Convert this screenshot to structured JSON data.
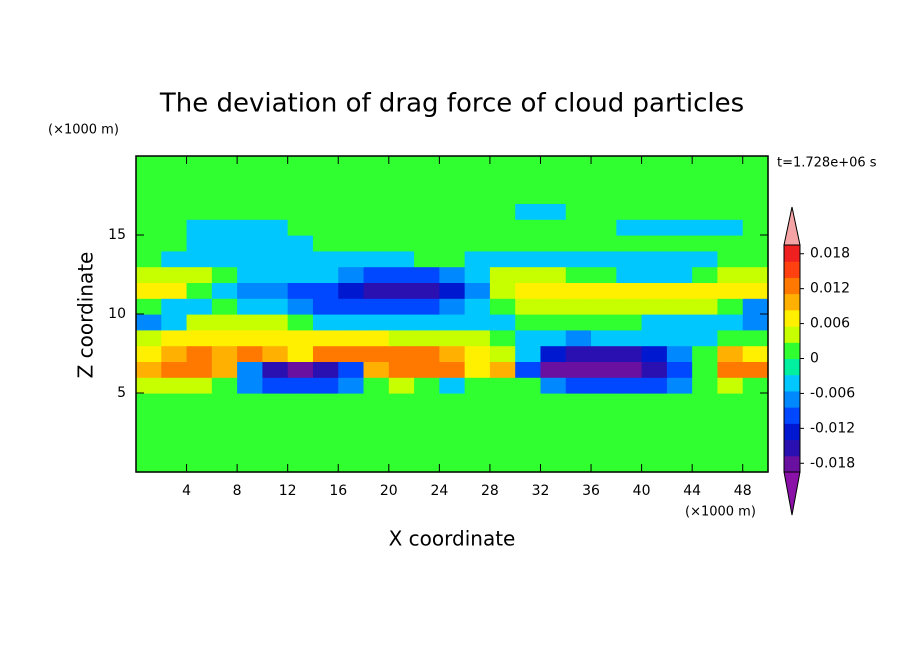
{
  "chart_data": {
    "type": "contour",
    "title": "The deviation of drag force of cloud particles",
    "xlabel": "X coordinate",
    "ylabel": "Z coordinate",
    "xunit": "(×1000 m)",
    "yunit": "(×1000 m)",
    "time_label": "t=1.728e+06 s",
    "xlim": [
      0,
      50
    ],
    "ylim": [
      0,
      20
    ],
    "xticks": [
      4,
      8,
      12,
      16,
      20,
      24,
      28,
      32,
      36,
      40,
      44,
      48
    ],
    "yticks": [
      5,
      10,
      15
    ],
    "x": [
      1,
      3,
      5,
      7,
      9,
      11,
      13,
      15,
      17,
      19,
      21,
      23,
      25,
      27,
      29,
      31,
      33,
      35,
      37,
      39,
      41,
      43,
      45,
      47,
      49
    ],
    "y": [
      0.5,
      1.5,
      2.5,
      3.5,
      4.5,
      5.5,
      6.5,
      7.5,
      8.5,
      9.5,
      10.5,
      11.5,
      12.5,
      13.5,
      14.5,
      15.5,
      16.5,
      17.5,
      18.5,
      19.5
    ],
    "z": [
      [
        0,
        0,
        0,
        0,
        0,
        0,
        0,
        0,
        0,
        0,
        0,
        0,
        0,
        0,
        0,
        0,
        0,
        0,
        0,
        0,
        0,
        0,
        0,
        0,
        0
      ],
      [
        0,
        0,
        0,
        0,
        0,
        0,
        0,
        0,
        0,
        0,
        0,
        0,
        0,
        0,
        0,
        0,
        0,
        0,
        0,
        0,
        0,
        0,
        0,
        0,
        0
      ],
      [
        0,
        0,
        0,
        0,
        0,
        0,
        0,
        0,
        0,
        0,
        0,
        0,
        0,
        0,
        0,
        0,
        0,
        0,
        0,
        0,
        0,
        0,
        0,
        0,
        0
      ],
      [
        0,
        0,
        0,
        0,
        0,
        0,
        0,
        0,
        0,
        0,
        0,
        0,
        0,
        0,
        0,
        0,
        0,
        0,
        0,
        0,
        0,
        0,
        0,
        0,
        0
      ],
      [
        0,
        0,
        0,
        0,
        0,
        0,
        0,
        0,
        0,
        0,
        0,
        0,
        0,
        0,
        0,
        0,
        0,
        0,
        0,
        0,
        0,
        0,
        0,
        0,
        0
      ],
      [
        0.003,
        0.003,
        0.003,
        0,
        -0.006,
        -0.009,
        -0.009,
        -0.009,
        -0.006,
        0,
        0.003,
        0,
        -0.003,
        0,
        0,
        0,
        -0.006,
        -0.009,
        -0.009,
        -0.009,
        -0.009,
        -0.006,
        0,
        0.003,
        0
      ],
      [
        0.009,
        0.012,
        0.012,
        0.009,
        -0.006,
        -0.015,
        -0.018,
        -0.015,
        -0.009,
        0.009,
        0.012,
        0.012,
        0.012,
        0.006,
        0.009,
        -0.009,
        -0.018,
        -0.018,
        -0.018,
        -0.018,
        -0.015,
        -0.009,
        0,
        0.012,
        0.012
      ],
      [
        0.006,
        0.009,
        0.012,
        0.009,
        0.012,
        0.009,
        0.006,
        0.012,
        0.012,
        0.012,
        0.012,
        0.012,
        0.009,
        0.006,
        0.003,
        -0.003,
        -0.012,
        -0.015,
        -0.015,
        -0.015,
        -0.012,
        -0.006,
        0,
        0.009,
        0.006
      ],
      [
        0.003,
        0.006,
        0.006,
        0.006,
        0.006,
        0.006,
        0.006,
        0.006,
        0.006,
        0.006,
        0.003,
        0.003,
        0.003,
        0.003,
        0,
        -0.003,
        -0.003,
        -0.006,
        -0.003,
        -0.003,
        -0.003,
        -0.003,
        -0.003,
        0,
        0
      ],
      [
        -0.006,
        -0.003,
        0.003,
        0.003,
        0.003,
        0.003,
        0,
        -0.003,
        -0.003,
        -0.003,
        -0.003,
        -0.003,
        -0.003,
        -0.003,
        -0.003,
        0,
        0,
        0,
        0,
        0,
        -0.003,
        -0.003,
        -0.003,
        -0.003,
        -0.006
      ],
      [
        0,
        -0.003,
        -0.003,
        0,
        -0.003,
        -0.003,
        -0.006,
        -0.009,
        -0.009,
        -0.009,
        -0.009,
        -0.009,
        -0.006,
        -0.003,
        0,
        0.003,
        0.003,
        0.003,
        0.003,
        0.003,
        0.003,
        0.003,
        0.003,
        0,
        -0.006
      ],
      [
        0.006,
        0.006,
        0,
        -0.003,
        -0.006,
        -0.006,
        -0.009,
        -0.009,
        -0.012,
        -0.015,
        -0.015,
        -0.015,
        -0.012,
        -0.006,
        0.003,
        0.006,
        0.006,
        0.006,
        0.006,
        0.006,
        0.006,
        0.006,
        0.006,
        0.006,
        0.006
      ],
      [
        0.003,
        0.003,
        0.003,
        0,
        -0.003,
        -0.003,
        -0.003,
        -0.003,
        -0.006,
        -0.009,
        -0.009,
        -0.009,
        -0.006,
        -0.003,
        0.003,
        0.003,
        0.003,
        0,
        0,
        -0.003,
        -0.003,
        -0.003,
        0,
        0.003,
        0.003
      ],
      [
        0,
        -0.003,
        -0.003,
        -0.003,
        -0.003,
        -0.003,
        -0.003,
        -0.003,
        -0.003,
        -0.003,
        -0.003,
        0,
        0,
        -0.003,
        -0.003,
        -0.003,
        -0.003,
        -0.003,
        -0.003,
        -0.003,
        -0.003,
        -0.003,
        -0.003,
        0,
        0
      ],
      [
        0,
        0,
        -0.003,
        -0.003,
        -0.003,
        -0.003,
        -0.003,
        0,
        0,
        0,
        0,
        0,
        0,
        0,
        0,
        0,
        0,
        0,
        0,
        0,
        0,
        0,
        0,
        0,
        0
      ],
      [
        0,
        0,
        -0.003,
        -0.003,
        -0.003,
        -0.003,
        0,
        0,
        0,
        0,
        0,
        0,
        0,
        0,
        0,
        0,
        0,
        0,
        0,
        -0.003,
        -0.003,
        -0.003,
        -0.003,
        -0.003,
        0
      ],
      [
        0,
        0,
        0,
        0,
        0,
        0,
        0,
        0,
        0,
        0,
        0,
        0,
        0,
        0,
        0,
        -0.003,
        -0.003,
        0,
        0,
        0,
        0,
        0,
        0,
        0,
        0
      ],
      [
        0,
        0,
        0,
        0,
        0,
        0,
        0,
        0,
        0,
        0,
        0,
        0,
        0,
        0,
        0,
        0,
        0,
        0,
        0,
        0,
        0,
        0,
        0,
        0,
        0
      ],
      [
        0,
        0,
        0,
        0,
        0,
        0,
        0,
        0,
        0,
        0,
        0,
        0,
        0,
        0,
        0,
        0,
        0,
        0,
        0,
        0,
        0,
        0,
        0,
        0,
        0
      ],
      [
        0,
        0,
        0,
        0,
        0,
        0,
        0,
        0,
        0,
        0,
        0,
        0,
        0,
        0,
        0,
        0,
        0,
        0,
        0,
        0,
        0,
        0,
        0,
        0,
        0
      ]
    ],
    "colorbar": {
      "lim": [
        -0.0195,
        0.0195
      ],
      "colors": [
        "#6a10a0",
        "#2a10b0",
        "#0018d0",
        "#0048ff",
        "#0088ff",
        "#00c8ff",
        "#00f0a0",
        "#30ff30",
        "#c8ff00",
        "#fff000",
        "#ffb000",
        "#ff7800",
        "#ff4010",
        "#f02020"
      ],
      "under_color": "#8a10a8",
      "over_color": "#f4a4a4",
      "ticks": [
        0.018,
        0.012,
        0.006,
        0,
        -0.006,
        -0.012,
        -0.018
      ]
    }
  }
}
